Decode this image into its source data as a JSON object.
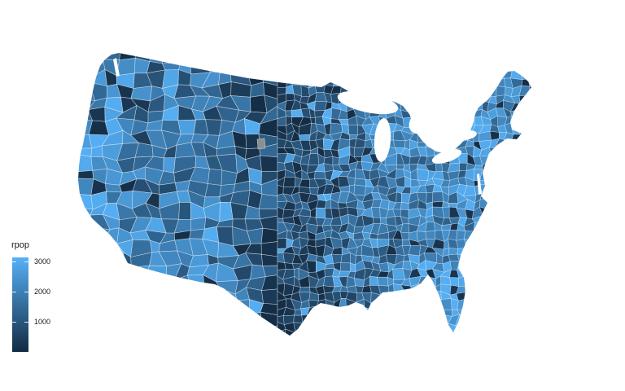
{
  "figure": {
    "background": "#ffffff",
    "kind": "ggplot2-style county choropleth of the contiguous United States"
  },
  "legend": {
    "title": "rpop",
    "ticks": [
      "3000",
      "2000",
      "1000"
    ],
    "tick_values": [
      3000,
      2000,
      1000
    ],
    "position": "left"
  },
  "chart_data": {
    "type": "heatmap",
    "subtype": "choropleth_map",
    "region": "Contiguous United States, county-level polygons (~3100 counties)",
    "variable": "rpop",
    "title": "",
    "xlabel": "",
    "ylabel": "",
    "legend_title": "rpop",
    "legend_tick_values": [
      3000,
      2000,
      1000
    ],
    "color_scale": {
      "low": "#132B43",
      "high": "#56B1F7",
      "na": "#8F8F8F",
      "min": 0,
      "max": 3135,
      "border": "rgba(235,240,245,0.65)"
    },
    "visual_summary": "Continuous blue gradient fill per county; Great Plains column predominantly dark (low rpop), West Coast, Florida, Southeast and Northeast mostly lighter blues (high rpop); Nevada/Montana mixed dark patches; one gray NA county in the central plains near the SD/NE border; Great Lakes and oceans white."
  },
  "na_county": {
    "color": "#8F8F8F",
    "approx_position": [
      318,
      176
    ]
  }
}
